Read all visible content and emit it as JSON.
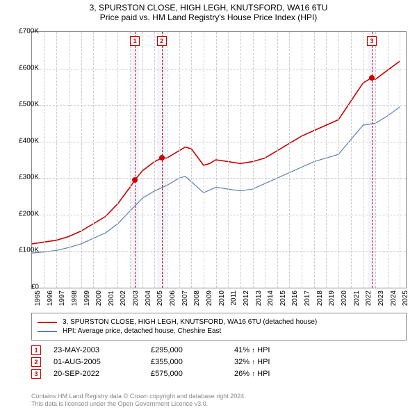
{
  "title": {
    "main": "3, SPURSTON CLOSE, HIGH LEGH, KNUTSFORD, WA16 6TU",
    "sub": "Price paid vs. HM Land Registry's House Price Index (HPI)"
  },
  "chart": {
    "type": "line",
    "xlim": [
      1995,
      2025.5
    ],
    "ylim": [
      0,
      700
    ],
    "ytick_step": 100,
    "ytick_prefix": "£",
    "ytick_suffix": "K",
    "x_ticks": [
      1995,
      1996,
      1997,
      1998,
      1999,
      2000,
      2001,
      2002,
      2003,
      2004,
      2005,
      2006,
      2007,
      2008,
      2009,
      2010,
      2011,
      2012,
      2013,
      2014,
      2015,
      2016,
      2017,
      2018,
      2019,
      2020,
      2021,
      2022,
      2023,
      2024,
      2025
    ],
    "background_color": "#ffffff",
    "grid_color": "#cccccc",
    "series": [
      {
        "name": "property",
        "label": "3, SPURSTON CLOSE, HIGH LEGH, KNUTSFORD, WA16 6TU (detached house)",
        "color": "#cc0000",
        "line_width": 1.6,
        "data": [
          [
            1995,
            120
          ],
          [
            1996,
            125
          ],
          [
            1997,
            130
          ],
          [
            1998,
            140
          ],
          [
            1999,
            155
          ],
          [
            2000,
            175
          ],
          [
            2001,
            195
          ],
          [
            2002,
            230
          ],
          [
            2003,
            275
          ],
          [
            2003.4,
            295
          ],
          [
            2004,
            320
          ],
          [
            2005,
            345
          ],
          [
            2005.58,
            355
          ],
          [
            2006,
            355
          ],
          [
            2007,
            375
          ],
          [
            2007.5,
            385
          ],
          [
            2008,
            380
          ],
          [
            2009,
            335
          ],
          [
            2009.5,
            340
          ],
          [
            2010,
            350
          ],
          [
            2011,
            345
          ],
          [
            2012,
            340
          ],
          [
            2013,
            345
          ],
          [
            2014,
            355
          ],
          [
            2015,
            375
          ],
          [
            2016,
            395
          ],
          [
            2017,
            415
          ],
          [
            2018,
            430
          ],
          [
            2019,
            445
          ],
          [
            2020,
            460
          ],
          [
            2021,
            510
          ],
          [
            2022,
            560
          ],
          [
            2022.72,
            575
          ],
          [
            2023,
            570
          ],
          [
            2024,
            595
          ],
          [
            2025,
            620
          ]
        ]
      },
      {
        "name": "hpi",
        "label": "HPI: Average price, detached house, Cheshire East",
        "color": "#5b7fb5",
        "line_width": 1.2,
        "data": [
          [
            1995,
            95
          ],
          [
            1996,
            98
          ],
          [
            1997,
            102
          ],
          [
            1998,
            110
          ],
          [
            1999,
            120
          ],
          [
            2000,
            135
          ],
          [
            2001,
            150
          ],
          [
            2002,
            175
          ],
          [
            2003,
            210
          ],
          [
            2004,
            245
          ],
          [
            2005,
            265
          ],
          [
            2006,
            280
          ],
          [
            2007,
            300
          ],
          [
            2007.5,
            305
          ],
          [
            2008,
            290
          ],
          [
            2009,
            260
          ],
          [
            2010,
            275
          ],
          [
            2011,
            270
          ],
          [
            2012,
            265
          ],
          [
            2013,
            270
          ],
          [
            2014,
            285
          ],
          [
            2015,
            300
          ],
          [
            2016,
            315
          ],
          [
            2017,
            330
          ],
          [
            2018,
            345
          ],
          [
            2019,
            355
          ],
          [
            2020,
            365
          ],
          [
            2021,
            405
          ],
          [
            2022,
            445
          ],
          [
            2023,
            450
          ],
          [
            2024,
            470
          ],
          [
            2025,
            495
          ]
        ]
      }
    ],
    "highlights": [
      {
        "x": 2003.4,
        "band_half_width": 0.35,
        "marker_label": "1"
      },
      {
        "x": 2005.58,
        "band_half_width": 0.35,
        "marker_label": "2"
      },
      {
        "x": 2022.72,
        "band_half_width": 0.35,
        "marker_label": "3"
      }
    ],
    "sale_points": [
      {
        "x": 2003.4,
        "y": 295
      },
      {
        "x": 2005.58,
        "y": 355
      },
      {
        "x": 2022.72,
        "y": 575
      }
    ]
  },
  "legend": {
    "rows": [
      {
        "color": "#cc0000",
        "label_path": "chart.series.0.label"
      },
      {
        "color": "#5b7fb5",
        "label_path": "chart.series.1.label"
      }
    ]
  },
  "sales": [
    {
      "num": "1",
      "date": "23-MAY-2003",
      "price": "£295,000",
      "pct": "41%",
      "arrow": "↑",
      "suffix": "HPI"
    },
    {
      "num": "2",
      "date": "01-AUG-2005",
      "price": "£355,000",
      "pct": "32%",
      "arrow": "↑",
      "suffix": "HPI"
    },
    {
      "num": "3",
      "date": "20-SEP-2022",
      "price": "£575,000",
      "pct": "26%",
      "arrow": "↑",
      "suffix": "HPI"
    }
  ],
  "footer": {
    "line1": "Contains HM Land Registry data © Crown copyright and database right 2024.",
    "line2": "This data is licensed under the Open Government Licence v3.0."
  }
}
